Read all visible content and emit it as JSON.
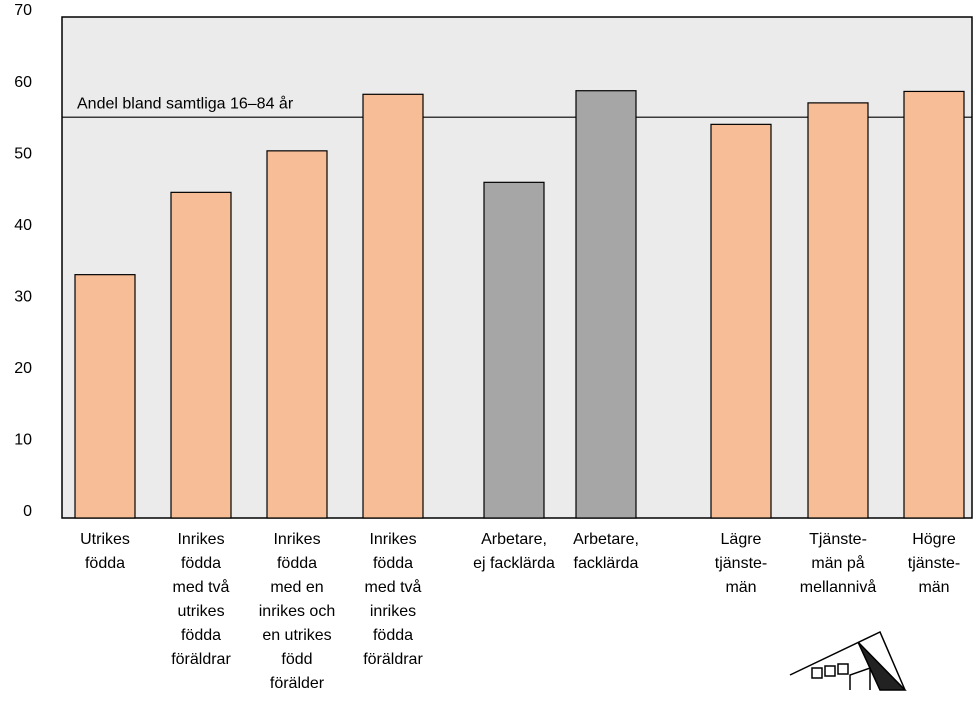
{
  "chart_data": {
    "type": "bar",
    "categories": [
      [
        "Utrikes",
        "födda"
      ],
      [
        "Inrikes",
        "födda",
        "med två",
        "utrikes",
        "födda",
        "föräldrar"
      ],
      [
        "Inrikes",
        "födda",
        "med en",
        "inrikes och",
        "en utrikes",
        "född",
        "förälder"
      ],
      [
        "Inrikes",
        "födda",
        "med två",
        "inrikes",
        "födda",
        "föräldrar"
      ],
      [
        "Arbetare,",
        "ej facklärda"
      ],
      [
        "Arbetare,",
        "facklärda"
      ],
      [
        "Lägre",
        "tjänste-",
        "män"
      ],
      [
        "Tjänste-",
        "män på",
        "mellannivå"
      ],
      [
        "Högre",
        "tjänste-",
        "män"
      ]
    ],
    "values": [
      34,
      45.5,
      51.3,
      59.2,
      46.9,
      59.7,
      55,
      58,
      59.6
    ],
    "colors": [
      "#f7bd96",
      "#f7bd96",
      "#f7bd96",
      "#f7bd96",
      "#a6a6a6",
      "#a6a6a6",
      "#f7bd96",
      "#f7bd96",
      "#f7bd96"
    ],
    "ylim": [
      0,
      70
    ],
    "yticks": [
      0,
      10,
      20,
      30,
      40,
      50,
      60,
      70
    ],
    "reference_line": {
      "value": 56,
      "label": "Andel bland samtliga 16–84 år"
    }
  }
}
